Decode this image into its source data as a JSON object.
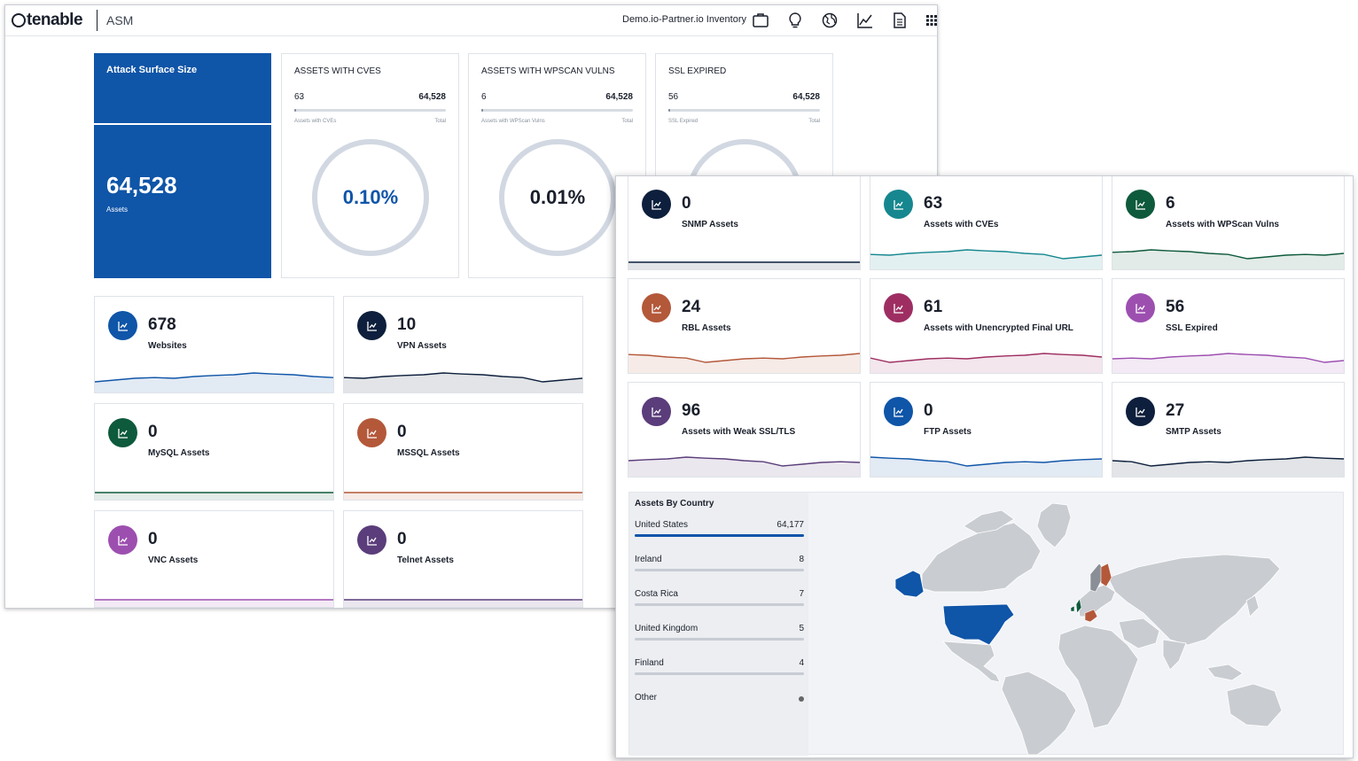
{
  "header": {
    "brand": "tenable",
    "app": "ASM",
    "inventory": "Demo.io-Partner.io Inventory",
    "icons": [
      "briefcase-icon",
      "lightbulb-icon",
      "globe-icon",
      "chart-icon",
      "document-icon",
      "grid-icon"
    ]
  },
  "attack_surface": {
    "title": "Attack Surface Size",
    "value": "64,528",
    "sub": "Assets"
  },
  "gauges": [
    {
      "title": "ASSETS WITH CVES",
      "left": "63",
      "right": "64,528",
      "left_label": "Assets with CVEs",
      "right_label": "Total",
      "pct": "0.10%",
      "fraction": 0.001,
      "color": "#0f55a8"
    },
    {
      "title": "ASSETS WITH WPSCAN VULNS",
      "left": "6",
      "right": "64,528",
      "left_label": "Assets with WPScan Vulns",
      "right_label": "Total",
      "pct": "0.01%",
      "fraction": 0.0001,
      "color": "#1a1f2b"
    },
    {
      "title": "SSL EXPIRED",
      "left": "56",
      "right": "64,528",
      "left_label": "SSL Expired",
      "right_label": "Total",
      "pct": "",
      "fraction": 0.0009,
      "color": "#1a1f2b"
    }
  ],
  "back_metrics": [
    {
      "num": "678",
      "label": "Websites",
      "color": "#0f55a8"
    },
    {
      "num": "10",
      "label": "VPN Assets",
      "color": "#0d1f3c"
    },
    {
      "num": "0",
      "label": "MySQL Assets",
      "color": "#0e5a3c"
    },
    {
      "num": "0",
      "label": "MSSQL Assets",
      "color": "#b4583a"
    },
    {
      "num": "0",
      "label": "VNC Assets",
      "color": "#9d4fb0"
    },
    {
      "num": "0",
      "label": "Telnet Assets",
      "color": "#5a3d7a"
    }
  ],
  "front_metrics": [
    {
      "num": "0",
      "label": "SNMP Assets",
      "color": "#0d1f3c"
    },
    {
      "num": "63",
      "label": "Assets with CVEs",
      "color": "#16878f"
    },
    {
      "num": "6",
      "label": "Assets with WPScan Vulns",
      "color": "#0e5a3c"
    },
    {
      "num": "24",
      "label": "RBL Assets",
      "color": "#b4583a"
    },
    {
      "num": "61",
      "label": "Assets with Unencrypted Final URL",
      "color": "#9e2e62"
    },
    {
      "num": "56",
      "label": "SSL Expired",
      "color": "#9d4fb0"
    },
    {
      "num": "96",
      "label": "Assets with Weak SSL/TLS",
      "color": "#5a3d7a"
    },
    {
      "num": "0",
      "label": "FTP Assets",
      "color": "#0f55a8"
    },
    {
      "num": "27",
      "label": "SMTP Assets",
      "color": "#0d1f3c"
    }
  ],
  "countries": {
    "title": "Assets By Country",
    "items": [
      {
        "name": "United States",
        "value": "64,177",
        "fraction": 1.0
      },
      {
        "name": "Ireland",
        "value": "8",
        "fraction": 0.0
      },
      {
        "name": "Costa Rica",
        "value": "7",
        "fraction": 0.0
      },
      {
        "name": "United Kingdom",
        "value": "5",
        "fraction": 0.0
      },
      {
        "name": "Finland",
        "value": "4",
        "fraction": 0.0
      },
      {
        "name": "Other",
        "value": "",
        "fraction": 0.0
      }
    ]
  }
}
